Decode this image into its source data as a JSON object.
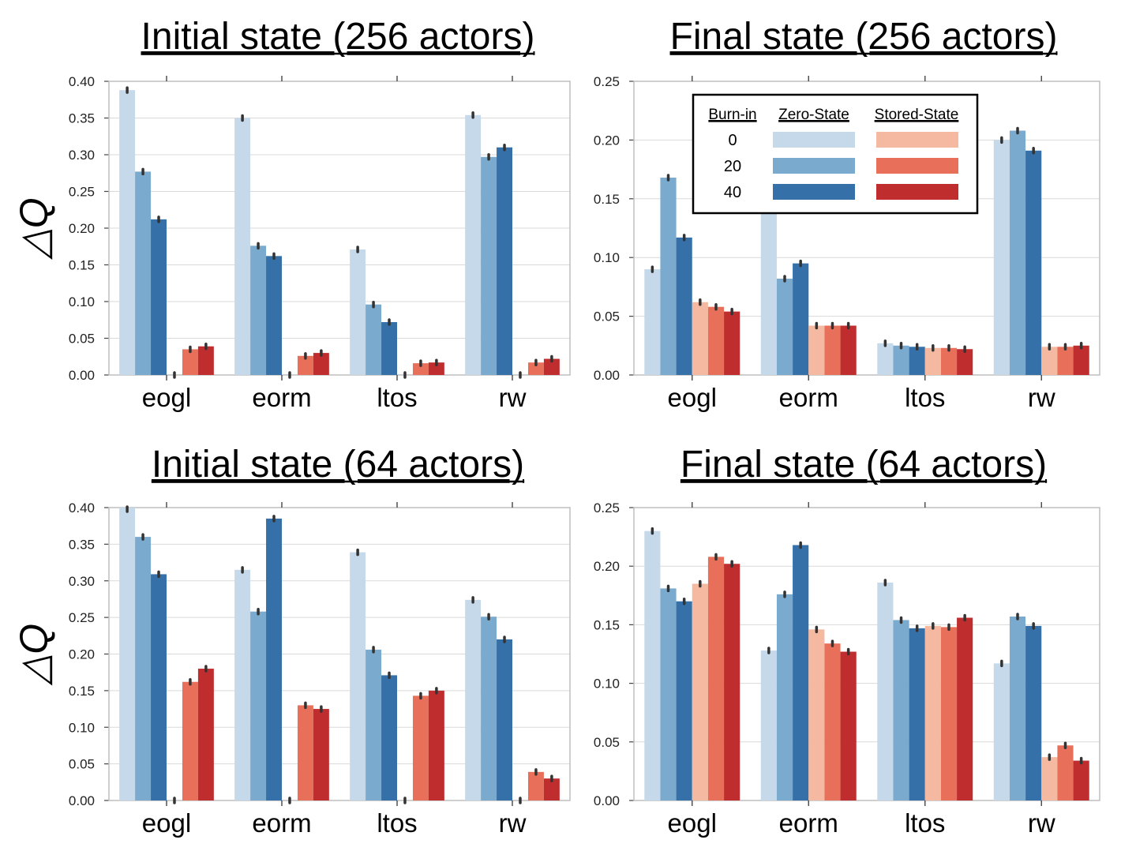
{
  "colors": {
    "zero_state": [
      "#c6d9ea",
      "#7aaacd",
      "#3570a8"
    ],
    "stored_state": [
      "#f4b9a0",
      "#e8705a",
      "#bf2d2f"
    ],
    "errorbar": "#333333",
    "grid": "#d9d9d9",
    "axes": "#bfbfbf"
  },
  "legend": {
    "header": "Burn-in",
    "columns": [
      "Zero-State",
      "Stored-State"
    ],
    "rows": [
      "0",
      "20",
      "40"
    ],
    "placement": "top-center of panel 2"
  },
  "chart_data": [
    {
      "type": "bar",
      "title": "Initial state (256 actors)",
      "ylabel": "△Q",
      "xlabel": "",
      "ylim": [
        0,
        0.4
      ],
      "yticks": [
        "0.00",
        "0.05",
        "0.10",
        "0.15",
        "0.20",
        "0.25",
        "0.30",
        "0.35",
        "0.40"
      ],
      "categories": [
        "eogl",
        "eorm",
        "ltos",
        "rw"
      ],
      "grid": true,
      "series": [
        {
          "name": "Zero-State 0",
          "values": [
            0.388,
            0.35,
            0.171,
            0.354
          ]
        },
        {
          "name": "Zero-State 20",
          "values": [
            0.277,
            0.176,
            0.096,
            0.297
          ]
        },
        {
          "name": "Zero-State 40",
          "values": [
            0.212,
            0.162,
            0.072,
            0.31
          ]
        },
        {
          "name": "Stored-State 0",
          "values": [
            0.0,
            0.0,
            0.0,
            0.0
          ]
        },
        {
          "name": "Stored-State 20",
          "values": [
            0.035,
            0.026,
            0.016,
            0.017
          ]
        },
        {
          "name": "Stored-State 40",
          "values": [
            0.039,
            0.03,
            0.017,
            0.022
          ]
        }
      ]
    },
    {
      "type": "bar",
      "title": "Final state (256 actors)",
      "ylabel": "",
      "xlabel": "",
      "ylim": [
        0,
        0.25
      ],
      "yticks": [
        "0.00",
        "0.05",
        "0.10",
        "0.15",
        "0.20",
        "0.25"
      ],
      "categories": [
        "eogl",
        "eorm",
        "ltos",
        "rw"
      ],
      "grid": true,
      "series": [
        {
          "name": "Zero-State 0",
          "values": [
            0.09,
            0.145,
            0.027,
            0.2
          ]
        },
        {
          "name": "Zero-State 20",
          "values": [
            0.168,
            0.082,
            0.025,
            0.208
          ]
        },
        {
          "name": "Zero-State 40",
          "values": [
            0.117,
            0.095,
            0.024,
            0.191
          ]
        },
        {
          "name": "Stored-State 0",
          "values": [
            0.062,
            0.042,
            0.023,
            0.024
          ]
        },
        {
          "name": "Stored-State 20",
          "values": [
            0.058,
            0.042,
            0.023,
            0.024
          ]
        },
        {
          "name": "Stored-State 40",
          "values": [
            0.054,
            0.042,
            0.022,
            0.025
          ]
        }
      ]
    },
    {
      "type": "bar",
      "title": "Initial state (64 actors)",
      "ylabel": "△Q",
      "xlabel": "",
      "ylim": [
        0,
        0.4
      ],
      "yticks": [
        "0.00",
        "0.05",
        "0.10",
        "0.15",
        "0.20",
        "0.25",
        "0.30",
        "0.35",
        "0.40"
      ],
      "categories": [
        "eogl",
        "eorm",
        "ltos",
        "rw"
      ],
      "grid": true,
      "series": [
        {
          "name": "Zero-State 0",
          "values": [
            0.4,
            0.315,
            0.339,
            0.274
          ]
        },
        {
          "name": "Zero-State 20",
          "values": [
            0.36,
            0.258,
            0.206,
            0.251
          ]
        },
        {
          "name": "Zero-State 40",
          "values": [
            0.309,
            0.385,
            0.171,
            0.22
          ]
        },
        {
          "name": "Stored-State 0",
          "values": [
            0.0,
            0.0,
            0.0,
            0.0
          ]
        },
        {
          "name": "Stored-State 20",
          "values": [
            0.162,
            0.13,
            0.143,
            0.039
          ]
        },
        {
          "name": "Stored-State 40",
          "values": [
            0.18,
            0.125,
            0.15,
            0.03
          ]
        }
      ]
    },
    {
      "type": "bar",
      "title": "Final state (64 actors)",
      "ylabel": "",
      "xlabel": "",
      "ylim": [
        0,
        0.25
      ],
      "yticks": [
        "0.00",
        "0.05",
        "0.10",
        "0.15",
        "0.20",
        "0.25"
      ],
      "categories": [
        "eogl",
        "eorm",
        "ltos",
        "rw"
      ],
      "grid": true,
      "series": [
        {
          "name": "Zero-State 0",
          "values": [
            0.23,
            0.128,
            0.186,
            0.117
          ]
        },
        {
          "name": "Zero-State 20",
          "values": [
            0.181,
            0.176,
            0.154,
            0.157
          ]
        },
        {
          "name": "Zero-State 40",
          "values": [
            0.17,
            0.218,
            0.147,
            0.149
          ]
        },
        {
          "name": "Stored-State 0",
          "values": [
            0.185,
            0.146,
            0.149,
            0.037
          ]
        },
        {
          "name": "Stored-State 20",
          "values": [
            0.208,
            0.134,
            0.148,
            0.047
          ]
        },
        {
          "name": "Stored-State 40",
          "values": [
            0.202,
            0.127,
            0.156,
            0.034
          ]
        }
      ]
    }
  ]
}
